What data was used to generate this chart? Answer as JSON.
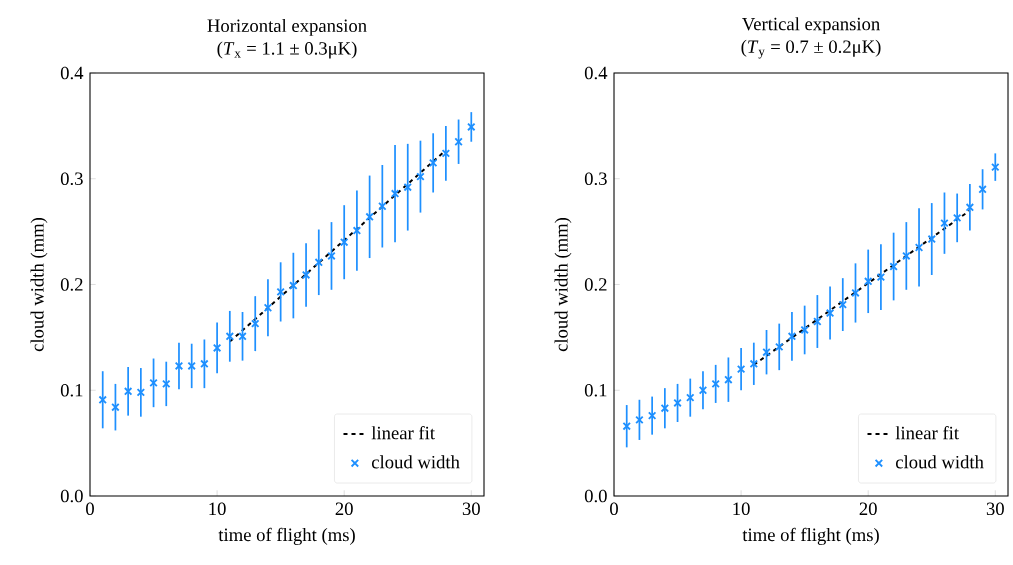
{
  "chart_data": [
    {
      "type": "scatter",
      "title": "Horizontal expansion",
      "subtitle": "(*T*$_{x}$ = 1.1 ± 0.3μK)",
      "xlabel": "time of flight (ms)",
      "ylabel": "cloud width (mm)",
      "xlim": [
        0,
        31
      ],
      "ylim": [
        0,
        0.4
      ],
      "xticks": [
        0,
        10,
        20,
        30
      ],
      "yticks": [
        {
          "value": 0,
          "label": "0.0"
        },
        0.1,
        0.2,
        0.3,
        0.4
      ],
      "grid": false,
      "legend": "bottom right",
      "series": [
        {
          "name": "linear fit",
          "type": "line",
          "color": "#000000",
          "marker": "none",
          "line_style": "dashed",
          "x": [
            11,
            28
          ],
          "values": [
            0.146,
            0.327
          ]
        },
        {
          "name": "cloud width",
          "color": "#1e90ff",
          "marker": "cross",
          "x": [
            1,
            2,
            3,
            4,
            5,
            6,
            7,
            8,
            9,
            10,
            11,
            12,
            13,
            14,
            15,
            16,
            17,
            18,
            19,
            20,
            21,
            22,
            23,
            24,
            25,
            26,
            27,
            28,
            29,
            30
          ],
          "values": [
            0.091,
            0.084,
            0.099,
            0.098,
            0.107,
            0.106,
            0.123,
            0.123,
            0.125,
            0.14,
            0.151,
            0.151,
            0.163,
            0.178,
            0.193,
            0.199,
            0.209,
            0.221,
            0.227,
            0.24,
            0.251,
            0.264,
            0.274,
            0.286,
            0.292,
            0.302,
            0.315,
            0.324,
            0.335,
            0.349
          ],
          "errors": [
            0.027,
            0.022,
            0.023,
            0.023,
            0.023,
            0.021,
            0.022,
            0.021,
            0.023,
            0.024,
            0.024,
            0.023,
            0.026,
            0.027,
            0.028,
            0.031,
            0.03,
            0.031,
            0.032,
            0.035,
            0.038,
            0.039,
            0.039,
            0.046,
            0.041,
            0.034,
            0.028,
            0.026,
            0.021,
            0.014
          ]
        }
      ]
    },
    {
      "type": "scatter",
      "title": "Vertical expansion",
      "subtitle": "(*T*$_{y}$ = 0.7 ± 0.2μK)",
      "xlabel": "time of flight (ms)",
      "ylabel": "cloud width (mm)",
      "xlim": [
        0,
        31
      ],
      "ylim": [
        0,
        0.4
      ],
      "xticks": [
        0,
        10,
        20,
        30
      ],
      "yticks": [
        {
          "value": 0,
          "label": "0.0"
        },
        0.1,
        0.2,
        0.3,
        0.4
      ],
      "grid": false,
      "legend": "bottom right",
      "series": [
        {
          "name": "linear fit",
          "type": "line",
          "color": "#000000",
          "marker": "none",
          "line_style": "dashed",
          "x": [
            11,
            28
          ],
          "values": [
            0.124,
            0.27
          ]
        },
        {
          "name": "cloud width",
          "color": "#1e90ff",
          "marker": "cross",
          "x": [
            1,
            2,
            3,
            4,
            5,
            6,
            7,
            8,
            9,
            10,
            11,
            12,
            13,
            14,
            15,
            16,
            17,
            18,
            19,
            20,
            21,
            22,
            23,
            24,
            25,
            26,
            27,
            28,
            29,
            30
          ],
          "values": [
            0.066,
            0.072,
            0.076,
            0.083,
            0.088,
            0.093,
            0.1,
            0.106,
            0.11,
            0.12,
            0.125,
            0.136,
            0.141,
            0.151,
            0.157,
            0.165,
            0.173,
            0.181,
            0.192,
            0.203,
            0.207,
            0.217,
            0.227,
            0.235,
            0.243,
            0.258,
            0.263,
            0.273,
            0.29,
            0.311
          ],
          "errors": [
            0.02,
            0.019,
            0.018,
            0.019,
            0.018,
            0.018,
            0.018,
            0.018,
            0.021,
            0.02,
            0.02,
            0.021,
            0.022,
            0.023,
            0.023,
            0.025,
            0.025,
            0.025,
            0.028,
            0.03,
            0.031,
            0.032,
            0.032,
            0.037,
            0.034,
            0.029,
            0.023,
            0.022,
            0.019,
            0.013
          ]
        }
      ]
    }
  ]
}
